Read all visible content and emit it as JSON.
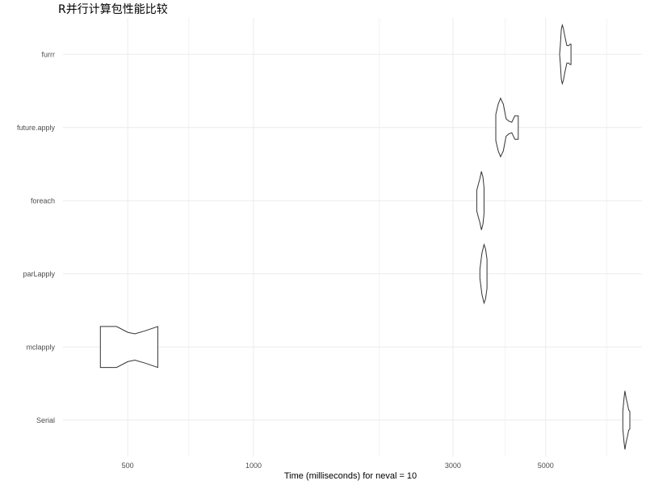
{
  "chart_data": {
    "type": "violin",
    "title": "R并行计算包性能比较",
    "xlabel": "Time (milliseconds) for neval = 10",
    "ylabel": "",
    "x_scale": "log10",
    "xlim": [
      350,
      8500
    ],
    "x_ticks": [
      500,
      1000,
      3000,
      5000
    ],
    "x_minor_ticks": [
      700,
      2000,
      4000,
      7000
    ],
    "grid": true,
    "legend": "none",
    "categories": [
      "furrr",
      "future.apply",
      "foreach",
      "parLapply",
      "mclapply",
      "Serial"
    ],
    "series": [
      {
        "category": "furrr",
        "min": 5400,
        "max": 5750,
        "profile": [
          [
            5400,
            0.0
          ],
          [
            5420,
            0.3
          ],
          [
            5450,
            0.85
          ],
          [
            5480,
            1.0
          ],
          [
            5510,
            0.9
          ],
          [
            5560,
            0.6
          ],
          [
            5620,
            0.3
          ],
          [
            5680,
            0.3
          ],
          [
            5720,
            0.35
          ],
          [
            5750,
            0.35
          ]
        ]
      },
      {
        "category": "future.apply",
        "min": 3800,
        "max": 4300,
        "profile": [
          [
            3800,
            0.45
          ],
          [
            3850,
            0.8
          ],
          [
            3900,
            1.0
          ],
          [
            3960,
            0.8
          ],
          [
            4020,
            0.3
          ],
          [
            4080,
            0.22
          ],
          [
            4150,
            0.18
          ],
          [
            4220,
            0.4
          ],
          [
            4280,
            0.4
          ],
          [
            4300,
            0.4
          ]
        ]
      },
      {
        "category": "foreach",
        "min": 3420,
        "max": 3560,
        "profile": [
          [
            3420,
            0.35
          ],
          [
            3450,
            0.55
          ],
          [
            3480,
            0.75
          ],
          [
            3510,
            1.0
          ],
          [
            3540,
            0.8
          ],
          [
            3560,
            0.45
          ]
        ]
      },
      {
        "category": "parLapply",
        "min": 3480,
        "max": 3620,
        "profile": [
          [
            3480,
            0.15
          ],
          [
            3520,
            0.7
          ],
          [
            3560,
            1.0
          ],
          [
            3590,
            0.85
          ],
          [
            3620,
            0.5
          ]
        ]
      },
      {
        "category": "mclapply",
        "min": 430,
        "max": 590,
        "profile": [
          [
            430,
            0.7
          ],
          [
            470,
            0.7
          ],
          [
            500,
            0.5
          ],
          [
            520,
            0.45
          ],
          [
            550,
            0.55
          ],
          [
            590,
            0.7
          ]
        ]
      },
      {
        "category": "Serial",
        "min": 7650,
        "max": 7950,
        "profile": [
          [
            7650,
            0.3
          ],
          [
            7700,
            0.75
          ],
          [
            7740,
            1.0
          ],
          [
            7790,
            0.75
          ],
          [
            7850,
            0.55
          ],
          [
            7900,
            0.35
          ],
          [
            7950,
            0.3
          ]
        ]
      }
    ]
  }
}
